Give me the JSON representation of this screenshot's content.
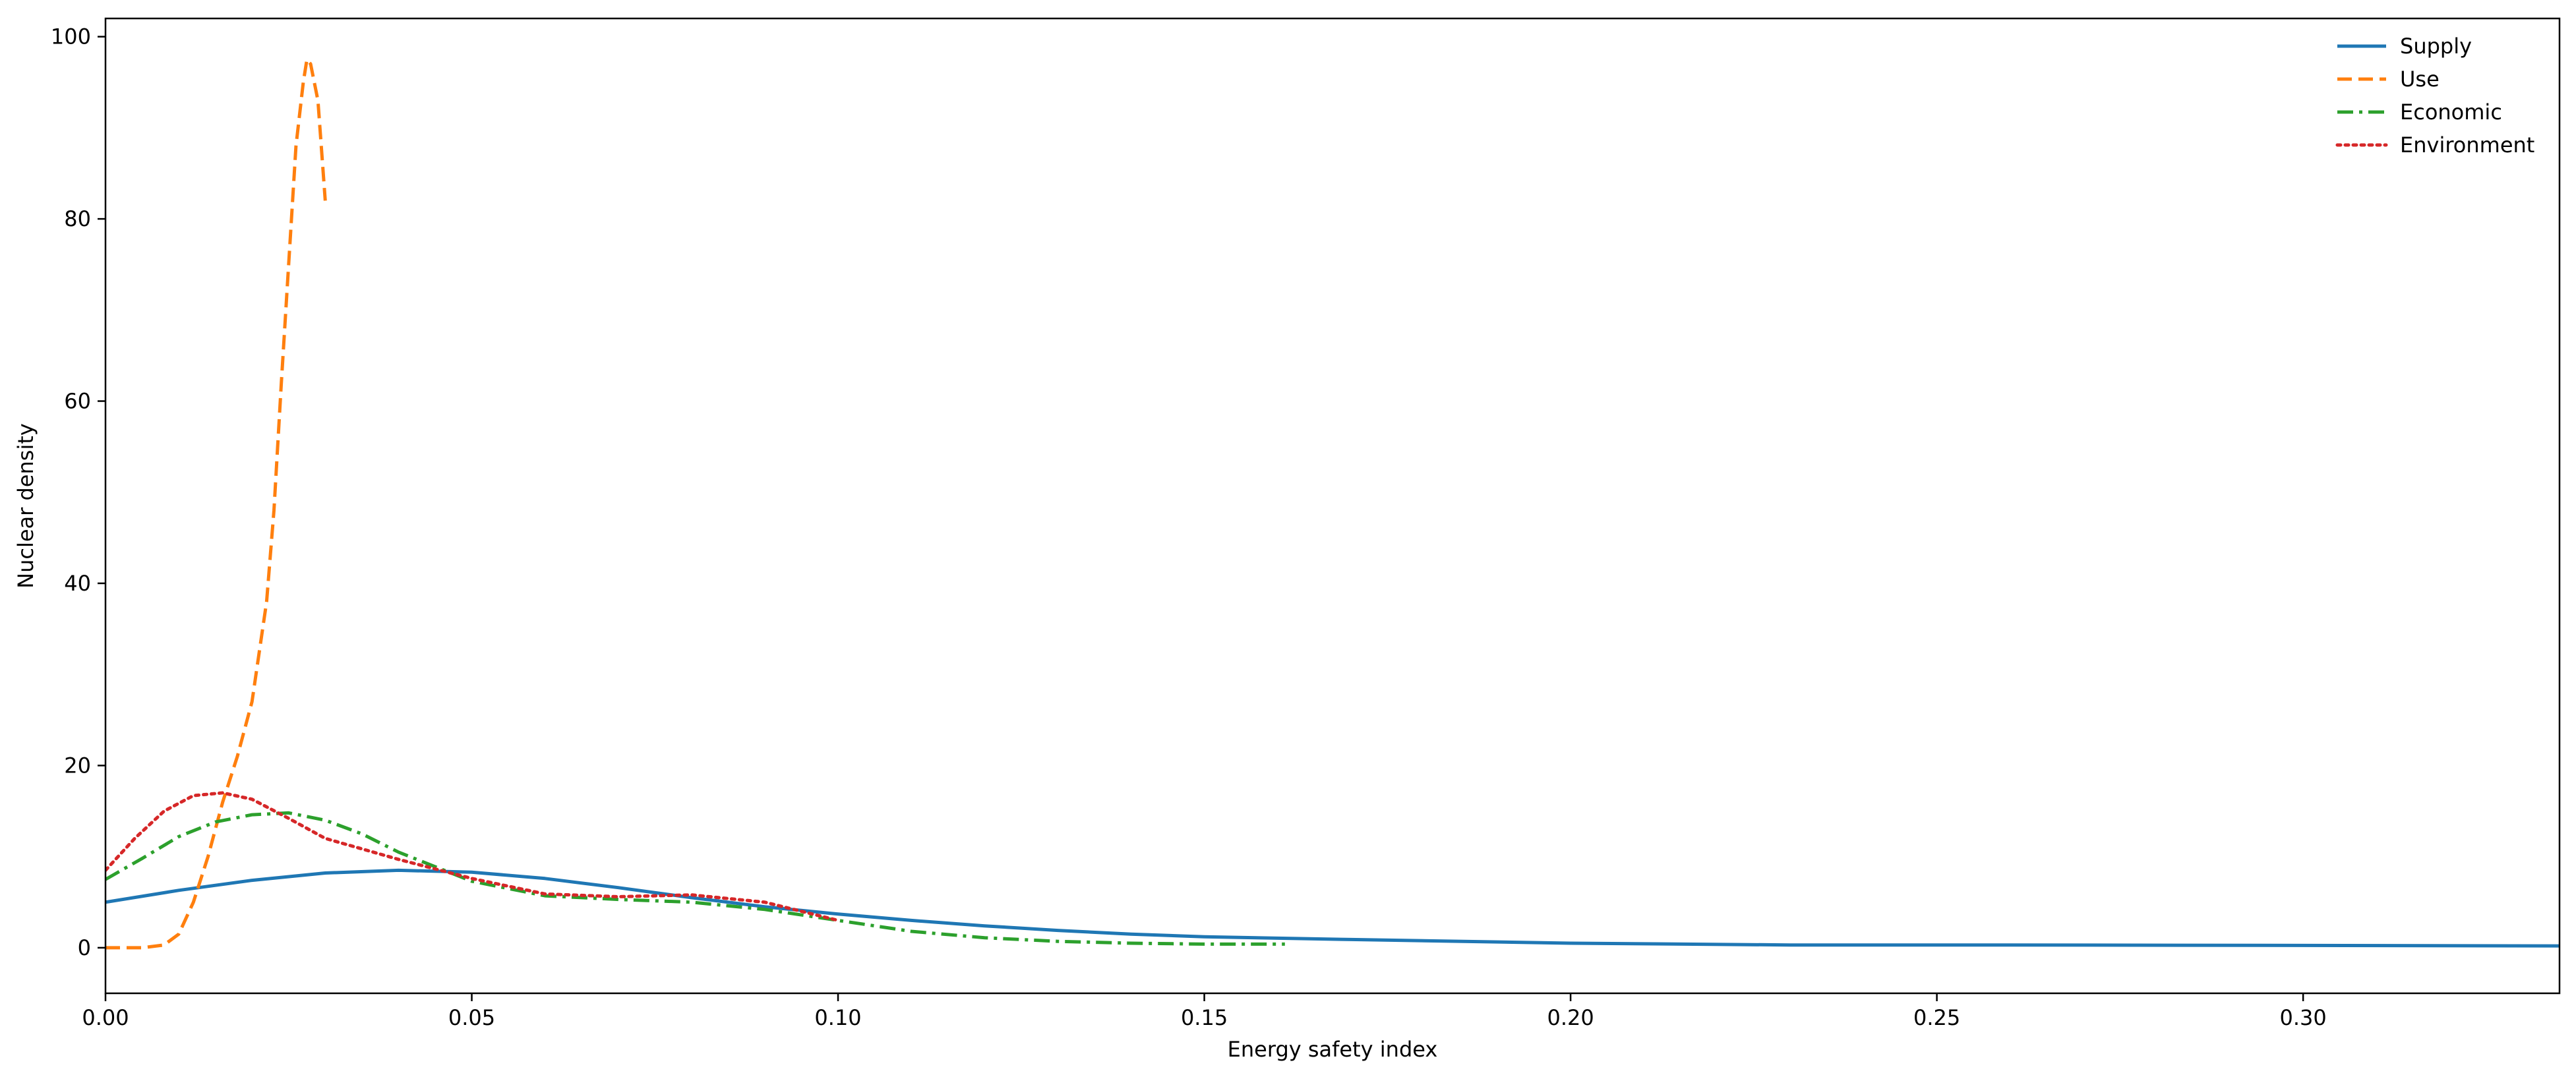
{
  "chart_data": {
    "type": "line",
    "title": "",
    "xlabel": "Energy safety index",
    "ylabel": "Nuclear density",
    "xlim": [
      0,
      0.335
    ],
    "ylim": [
      -5,
      102
    ],
    "x_ticks": [
      0.0,
      0.05,
      0.1,
      0.15,
      0.2,
      0.25,
      0.3
    ],
    "x_tick_labels": [
      "0.00",
      "0.05",
      "0.10",
      "0.15",
      "0.20",
      "0.25",
      "0.30"
    ],
    "y_ticks": [
      0,
      20,
      40,
      60,
      80,
      100
    ],
    "y_tick_labels": [
      "0",
      "20",
      "40",
      "60",
      "80",
      "100"
    ],
    "grid": false,
    "legend_position": "top-right",
    "series": [
      {
        "name": "Supply",
        "color": "#1f77b4",
        "style": "solid",
        "x": [
          0.0,
          0.01,
          0.02,
          0.03,
          0.04,
          0.05,
          0.06,
          0.07,
          0.08,
          0.09,
          0.1,
          0.11,
          0.12,
          0.13,
          0.14,
          0.15,
          0.17,
          0.2,
          0.23,
          0.26,
          0.3,
          0.335
        ],
        "y": [
          5.0,
          6.3,
          7.4,
          8.2,
          8.5,
          8.3,
          7.6,
          6.6,
          5.5,
          4.5,
          3.7,
          3.0,
          2.4,
          1.9,
          1.5,
          1.2,
          0.9,
          0.5,
          0.3,
          0.3,
          0.25,
          0.2
        ]
      },
      {
        "name": "Use",
        "color": "#ff7f0e",
        "style": "dashed",
        "x": [
          0.0,
          0.005,
          0.008,
          0.01,
          0.012,
          0.014,
          0.016,
          0.018,
          0.02,
          0.022,
          0.023,
          0.024,
          0.025,
          0.026,
          0.027,
          0.0275,
          0.028,
          0.029,
          0.03
        ],
        "y": [
          0.0,
          0.0,
          0.3,
          1.5,
          5.0,
          10.0,
          16.0,
          21.0,
          27.0,
          38.0,
          48.0,
          62.0,
          75.0,
          88.0,
          95.0,
          97.5,
          97.0,
          93.0,
          82.0
        ]
      },
      {
        "name": "Economic",
        "color": "#2ca02c",
        "style": "dashdot",
        "x": [
          0.0,
          0.005,
          0.01,
          0.015,
          0.02,
          0.025,
          0.03,
          0.035,
          0.04,
          0.05,
          0.06,
          0.07,
          0.08,
          0.09,
          0.1,
          0.11,
          0.12,
          0.13,
          0.14,
          0.15,
          0.161
        ],
        "y": [
          7.5,
          9.8,
          12.2,
          13.8,
          14.6,
          14.8,
          14.0,
          12.5,
          10.5,
          7.3,
          5.7,
          5.3,
          5.0,
          4.2,
          3.0,
          1.8,
          1.1,
          0.7,
          0.5,
          0.4,
          0.4
        ]
      },
      {
        "name": "Environment",
        "color": "#d62728",
        "style": "dotted",
        "x": [
          0.0,
          0.004,
          0.008,
          0.012,
          0.016,
          0.02,
          0.025,
          0.03,
          0.04,
          0.05,
          0.06,
          0.07,
          0.08,
          0.09,
          0.1
        ],
        "y": [
          8.5,
          12.0,
          15.0,
          16.7,
          17.0,
          16.3,
          14.2,
          12.0,
          9.7,
          7.6,
          5.9,
          5.6,
          5.8,
          5.0,
          3.0
        ]
      }
    ]
  }
}
